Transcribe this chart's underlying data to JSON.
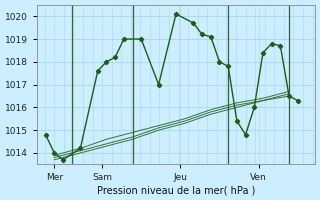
{
  "xlabel": "Pression niveau de la mer( hPa )",
  "bg_color": "#cceeff",
  "grid_color": "#a8d8e8",
  "line_color": "#1a5c1a",
  "sep_color": "#336633",
  "ylim": [
    1013.5,
    1020.5
  ],
  "yticks": [
    1014,
    1015,
    1016,
    1017,
    1018,
    1019,
    1020
  ],
  "xlim": [
    0,
    16
  ],
  "day_vlines": [
    2.0,
    5.5,
    11.0,
    14.5
  ],
  "xtick_positions": [
    1.0,
    3.75,
    8.25,
    12.75
  ],
  "xtick_labels": [
    "Mer",
    "Sam",
    "Jeu",
    "Ven"
  ],
  "series_main": {
    "x": [
      0.5,
      1.0,
      1.5,
      2.5,
      3.5,
      4.0,
      4.5,
      5.0,
      6.0,
      7.0,
      8.0,
      9.0,
      9.5,
      10.0,
      10.5,
      11.0,
      11.5,
      12.0,
      12.5,
      13.0,
      13.5,
      14.0,
      14.5,
      15.0
    ],
    "y": [
      1014.8,
      1014.0,
      1013.7,
      1014.2,
      1017.6,
      1018.0,
      1018.2,
      1019.0,
      1019.0,
      1017.0,
      1020.1,
      1019.7,
      1019.2,
      1019.1,
      1018.0,
      1017.8,
      1015.4,
      1014.8,
      1016.0,
      1018.4,
      1018.8,
      1018.7,
      1016.5,
      1016.3
    ]
  },
  "series_smooth": [
    {
      "x": [
        1.0,
        2.5,
        4.0,
        5.5,
        7.0,
        8.5,
        10.0,
        11.5,
        13.0,
        14.5
      ],
      "y": [
        1013.7,
        1014.0,
        1014.3,
        1014.6,
        1015.0,
        1015.3,
        1015.7,
        1016.0,
        1016.3,
        1016.5
      ]
    },
    {
      "x": [
        1.0,
        2.5,
        4.0,
        5.5,
        7.0,
        8.5,
        10.0,
        11.5,
        13.0,
        14.5
      ],
      "y": [
        1013.8,
        1014.1,
        1014.4,
        1014.7,
        1015.1,
        1015.4,
        1015.8,
        1016.1,
        1016.3,
        1016.6
      ]
    },
    {
      "x": [
        1.0,
        2.5,
        4.0,
        5.5,
        7.0,
        8.5,
        10.0,
        11.5,
        13.0,
        14.5
      ],
      "y": [
        1013.9,
        1014.2,
        1014.6,
        1014.9,
        1015.2,
        1015.5,
        1015.9,
        1016.2,
        1016.4,
        1016.7
      ]
    }
  ]
}
